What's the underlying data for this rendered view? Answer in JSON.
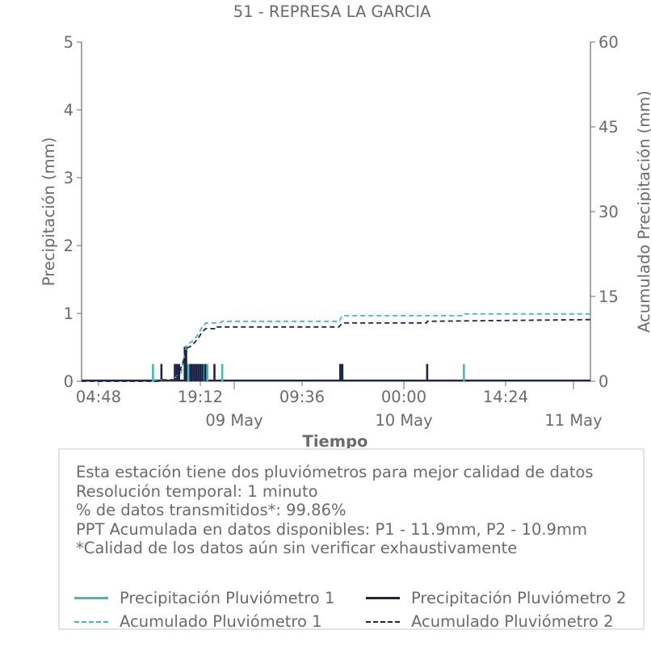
{
  "chart_data": {
    "type": "bar+line",
    "title": "51 - REPRESA LA GARCIA",
    "xlabel": "Tiempo",
    "ylabel_left": "Precipitación (mm)",
    "ylabel_right": "Acumulado Precipitación (mm)",
    "ylim_left": [
      0,
      5
    ],
    "ylim_right": [
      0,
      60
    ],
    "yticks_left": [
      "0",
      "1",
      "2",
      "3",
      "4",
      "5"
    ],
    "yticks_right": [
      "0",
      "15",
      "30",
      "45",
      "60"
    ],
    "xtick_labels": [
      "04:48",
      "19:12",
      "09:36",
      "00:00",
      "14:24"
    ],
    "xtick_hours": [
      4.8,
      19.2,
      33.6,
      48.0,
      62.4
    ],
    "date_labels": [
      "09 May",
      "10 May",
      "11 May"
    ],
    "date_hours": [
      24,
      48,
      72
    ],
    "x_range_hours": [
      2.4,
      74.4
    ],
    "series": [
      {
        "name": "Precipitación Pluviómetro 1",
        "kind": "bar",
        "color": "#4ab5c0",
        "events": [
          {
            "t": 12.5,
            "v": 0.254
          },
          {
            "t": 15.7,
            "v": 0.254
          },
          {
            "t": 16.0,
            "v": 0.254
          },
          {
            "t": 17.0,
            "v": 0.254
          },
          {
            "t": 17.4,
            "v": 0.254
          },
          {
            "t": 17.6,
            "v": 0.254
          },
          {
            "t": 18.2,
            "v": 0.254
          },
          {
            "t": 19.0,
            "v": 0.254
          },
          {
            "t": 19.8,
            "v": 0.254
          },
          {
            "t": 20.2,
            "v": 0.254
          },
          {
            "t": 22.3,
            "v": 0.254
          },
          {
            "t": 39.2,
            "v": 0.254
          },
          {
            "t": 56.5,
            "v": 0.254
          }
        ]
      },
      {
        "name": "Precipitación Pluviómetro 2",
        "kind": "bar",
        "color": "#1f2348",
        "events": [
          {
            "t": 13.7,
            "v": 0.254
          },
          {
            "t": 15.6,
            "v": 0.254
          },
          {
            "t": 15.9,
            "v": 0.254
          },
          {
            "t": 16.2,
            "v": 0.254
          },
          {
            "t": 17.0,
            "v": 0.508
          },
          {
            "t": 17.2,
            "v": 0.508
          },
          {
            "t": 17.8,
            "v": 0.254
          },
          {
            "t": 18.0,
            "v": 0.254
          },
          {
            "t": 18.3,
            "v": 0.254
          },
          {
            "t": 18.6,
            "v": 0.254
          },
          {
            "t": 18.9,
            "v": 0.254
          },
          {
            "t": 19.2,
            "v": 0.254
          },
          {
            "t": 19.5,
            "v": 0.254
          },
          {
            "t": 19.9,
            "v": 0.254
          },
          {
            "t": 21.2,
            "v": 0.254
          },
          {
            "t": 39.0,
            "v": 0.254
          },
          {
            "t": 39.3,
            "v": 0.254
          },
          {
            "t": 51.3,
            "v": 0.254
          }
        ]
      },
      {
        "name": "Acumulado Pluviómetro 1",
        "kind": "line",
        "color": "#4ab5c0",
        "dash": "6,4",
        "points": [
          [
            2.4,
            0
          ],
          [
            12.5,
            0
          ],
          [
            12.5,
            0.25
          ],
          [
            15.7,
            0.25
          ],
          [
            15.7,
            1.0
          ],
          [
            16.5,
            1.5
          ],
          [
            17.0,
            5.0
          ],
          [
            17.3,
            6.5
          ],
          [
            18.0,
            7.0
          ],
          [
            18.6,
            7.8
          ],
          [
            19.0,
            8.5
          ],
          [
            19.4,
            9.5
          ],
          [
            20.0,
            10.3
          ],
          [
            22.0,
            10.3
          ],
          [
            22.3,
            10.6
          ],
          [
            38.9,
            10.6
          ],
          [
            39.2,
            11.6
          ],
          [
            56.4,
            11.6
          ],
          [
            56.5,
            11.9
          ],
          [
            74.4,
            11.9
          ]
        ]
      },
      {
        "name": "Acumulado Pluviómetro 2",
        "kind": "line",
        "color": "#1f2348",
        "dash": "6,4",
        "points": [
          [
            2.4,
            0
          ],
          [
            13.5,
            0
          ],
          [
            13.7,
            0.25
          ],
          [
            15.6,
            0.25
          ],
          [
            15.6,
            1.0
          ],
          [
            16.2,
            1.5
          ],
          [
            16.8,
            3.5
          ],
          [
            17.2,
            5.8
          ],
          [
            17.9,
            6.2
          ],
          [
            18.5,
            7.0
          ],
          [
            19.0,
            7.8
          ],
          [
            19.5,
            8.8
          ],
          [
            20.0,
            9.3
          ],
          [
            21.2,
            9.3
          ],
          [
            21.2,
            9.6
          ],
          [
            38.8,
            9.6
          ],
          [
            39.3,
            10.3
          ],
          [
            51.2,
            10.3
          ],
          [
            51.3,
            10.6
          ],
          [
            74.4,
            10.9
          ]
        ]
      }
    ],
    "grid": false
  },
  "notes": {
    "line1": "Esta estación tiene dos pluviómetros para mejor calidad de datos",
    "line2": "Resolución temporal: 1 minuto",
    "line3": "% de datos transmitidos*: 99.86%",
    "line4": "PPT Acumulada en datos disponibles: P1 - 11.9mm, P2 - 10.9mm",
    "line5": "*Calidad de los datos aún sin verificar exhaustivamente"
  },
  "legend": {
    "item1": "Precipitación Pluviómetro 1",
    "item2": "Precipitación Pluviómetro 2",
    "item3": "Acumulado Pluviómetro 1",
    "item4": "Acumulado Pluviómetro 2"
  },
  "colors": {
    "p1": "#4ab5c0",
    "p2": "#1f2348",
    "axis": "#6b6b6b"
  }
}
